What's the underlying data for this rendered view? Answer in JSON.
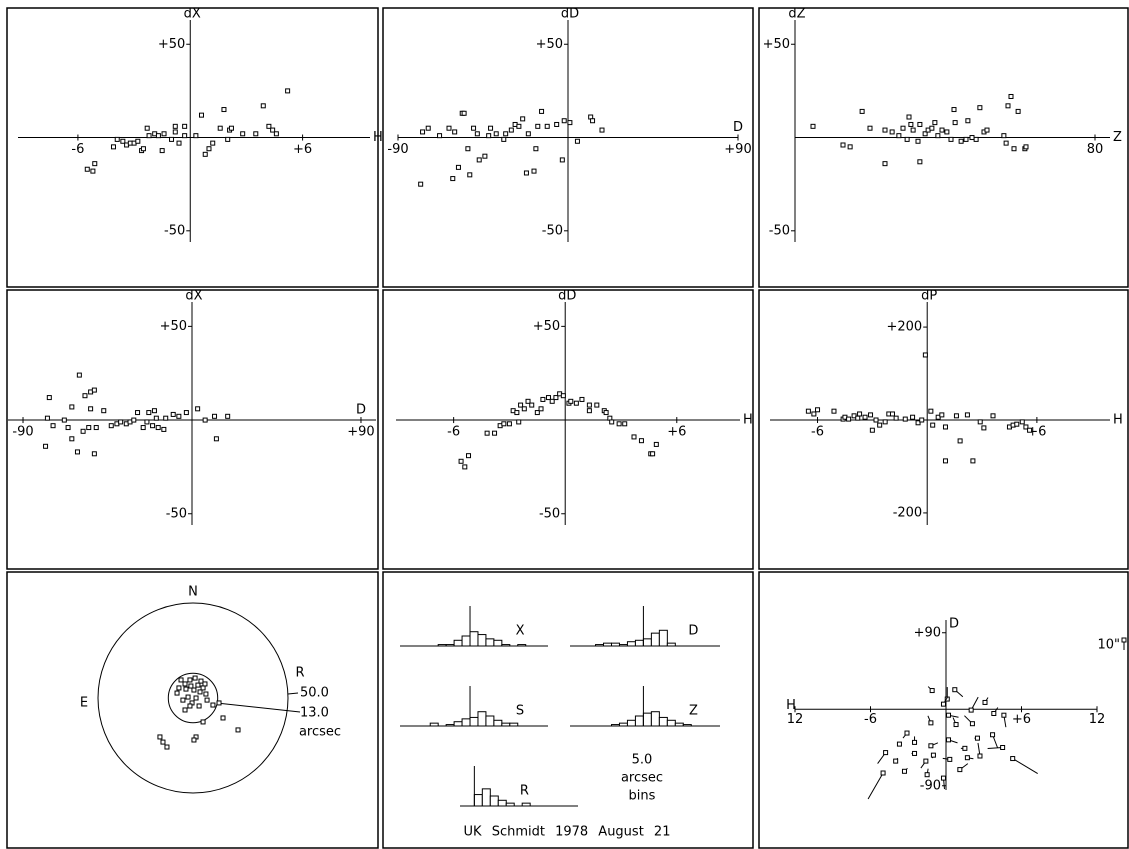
{
  "chart_data": [
    {
      "type": "scatter",
      "ylabel": "dX",
      "xlabel": "H",
      "xlim": [
        -9.2,
        9.6
      ],
      "ylim": [
        -56,
        63
      ],
      "xticks": [
        -6,
        {
          "value": 6,
          "label": "+6"
        }
      ],
      "yticks": [
        {
          "value": 50,
          "label": "+50"
        },
        -50
      ],
      "x": [
        -5.5,
        -5.1,
        -5.2,
        -4.1,
        -3.9,
        -3.6,
        -3.4,
        -3.2,
        -3.0,
        -2.8,
        -2.6,
        -2.5,
        -2.3,
        -2.2,
        -1.9,
        -1.7,
        -1.5,
        -1.4,
        -1.0,
        -0.8,
        -0.8,
        -0.6,
        -0.3,
        -0.3,
        0.3,
        0.6,
        0.8,
        1.0,
        1.2,
        1.6,
        1.8,
        2.0,
        2.1,
        2.2,
        2.8,
        3.5,
        3.9,
        4.2,
        4.4,
        4.6,
        5.2
      ],
      "y": [
        -17,
        -14,
        -18,
        -5,
        -1,
        -2,
        -4,
        -3,
        -3,
        -2,
        -7,
        -6,
        5,
        1,
        2,
        1,
        -7,
        2,
        -1,
        6,
        3,
        -3,
        6,
        1,
        1,
        12,
        -9,
        -6,
        -3,
        5,
        15,
        -1,
        4,
        5,
        2,
        2,
        17,
        6,
        4,
        2,
        25
      ]
    },
    {
      "type": "scatter",
      "ylabel": "dD",
      "xlabel": "D",
      "xlim": [
        -90,
        90
      ],
      "ylim": [
        -56,
        63
      ],
      "xticks": [
        -90,
        {
          "value": 90,
          "label": "+90"
        }
      ],
      "yticks": [
        {
          "value": 50,
          "label": "+50"
        },
        -50
      ],
      "x": [
        -78,
        -77,
        -74,
        -68,
        -63,
        -61,
        -60,
        -58,
        -56,
        -55,
        -53,
        -52,
        -50,
        -48,
        -47,
        -44,
        -42,
        -41,
        -38,
        -34,
        -33,
        -30,
        -28,
        -26,
        -24,
        -22,
        -21,
        -18,
        -17,
        -16,
        -14,
        -11,
        -6,
        -3,
        -2,
        1,
        5,
        12,
        13,
        18
      ],
      "y": [
        -25,
        3,
        5,
        1,
        5,
        -22,
        3,
        -16,
        13,
        13,
        -6,
        -20,
        5,
        2,
        -12,
        -10,
        1,
        5,
        2,
        -1,
        2,
        4,
        7,
        6,
        10,
        -19,
        2,
        -18,
        -6,
        6,
        14,
        6,
        7,
        -12,
        9,
        8,
        -2,
        11,
        9,
        4
      ]
    },
    {
      "type": "scatter",
      "ylabel": "dZ",
      "xlabel": "Z",
      "xlim": [
        0,
        84
      ],
      "ylim": [
        -56,
        63
      ],
      "xticks": [
        80
      ],
      "yticks": [
        {
          "value": 50,
          "label": "+50"
        },
        -50
      ],
      "x": [
        4.8,
        12.8,
        14.7,
        17.9,
        20.0,
        24.0,
        24.0,
        25.9,
        27.7,
        28.8,
        29.9,
        30.4,
        30.9,
        31.5,
        32.8,
        33.3,
        33.3,
        34.7,
        35.5,
        36.5,
        37.3,
        38.1,
        39.2,
        40.5,
        41.6,
        42.4,
        42.7,
        44.3,
        45.6,
        46.1,
        47.2,
        48.3,
        49.3,
        50.4,
        51.2,
        55.7,
        56.3,
        56.8,
        57.6,
        58.4,
        59.5,
        61.3,
        61.6
      ],
      "y": [
        6,
        -4,
        -5,
        14,
        5,
        -14,
        4,
        3,
        1,
        5,
        -1,
        11,
        7,
        4,
        -2,
        -13,
        7,
        2,
        4,
        5,
        8,
        1,
        4,
        3,
        -1,
        15,
        8,
        -2,
        -1,
        9,
        0,
        -1,
        16,
        3,
        4,
        1,
        -3,
        17,
        22,
        -6,
        14,
        -6,
        -5
      ]
    },
    {
      "type": "scatter",
      "ylabel": "dX",
      "xlabel": "D",
      "xlim": [
        -98,
        98
      ],
      "ylim": [
        -56,
        63
      ],
      "xticks": [
        -90,
        {
          "value": 90,
          "label": "+90"
        }
      ],
      "yticks": [
        {
          "value": 50,
          "label": "+50"
        },
        -50
      ],
      "x": [
        -78,
        -77,
        -76,
        -74,
        -68,
        -66,
        -64,
        -64,
        -61,
        -60,
        -58,
        -57,
        -55,
        -54,
        -54,
        -52,
        -52,
        -51,
        -47,
        -43,
        -40,
        -38,
        -35,
        -33,
        -31,
        -29,
        -26,
        -24,
        -23,
        -21,
        -20,
        -19,
        -18,
        -15,
        -14,
        -10,
        -7,
        -3,
        3,
        7,
        12,
        13,
        19
      ],
      "y": [
        -14,
        1,
        12,
        -3,
        0,
        -4,
        7,
        -10,
        -17,
        24,
        -6,
        13,
        -4,
        6,
        15,
        16,
        -18,
        -4,
        5,
        -3,
        -2,
        -1,
        -2,
        -1,
        0,
        4,
        -4,
        -1,
        4,
        -3,
        5,
        1,
        -4,
        -5,
        1,
        3,
        2,
        4,
        6,
        0,
        2,
        -10,
        2
      ]
    },
    {
      "type": "scatter",
      "ylabel": "dD",
      "xlabel": "H",
      "xlim": [
        -9.1,
        9.4
      ],
      "ylim": [
        -56,
        63
      ],
      "xticks": [
        -6,
        {
          "value": 6,
          "label": "+6"
        }
      ],
      "yticks": [
        {
          "value": 50,
          "label": "+50"
        },
        -50
      ],
      "x": [
        -5.6,
        -5.4,
        -5.2,
        -4.2,
        -3.8,
        -3.5,
        -3.3,
        -3.0,
        -2.8,
        -2.6,
        -2.5,
        -2.4,
        -2.2,
        -2.0,
        -1.8,
        -1.5,
        -1.3,
        -1.2,
        -0.9,
        -0.7,
        -0.5,
        -0.3,
        -0.1,
        0.2,
        0.3,
        0.6,
        0.9,
        1.3,
        1.3,
        1.7,
        2.1,
        2.2,
        2.4,
        2.5,
        2.9,
        3.2,
        3.7,
        4.1,
        4.6,
        4.7,
        4.9
      ],
      "y": [
        -22,
        -25,
        -19,
        -7,
        -7,
        -3,
        -2,
        -2,
        5,
        4,
        -1,
        8,
        6,
        10,
        8,
        4,
        6,
        11,
        12,
        10,
        12,
        14,
        13,
        9,
        10,
        9,
        11,
        8,
        5,
        8,
        5,
        4,
        1,
        -1,
        -2,
        -2,
        -9,
        -11,
        -18,
        -18,
        -13
      ]
    },
    {
      "type": "scatter",
      "ylabel": "dP",
      "xlabel": "H",
      "xlim": [
        -8.6,
        10
      ],
      "ylim": [
        -226,
        254
      ],
      "xticks": [
        -6,
        {
          "value": 6,
          "label": "+6"
        }
      ],
      "yticks": [
        {
          "value": 200,
          "label": "+200"
        },
        -200
      ],
      "x": [
        -6.5,
        -6.2,
        -6.0,
        -5.1,
        -4.6,
        -4.5,
        -4.3,
        -4.0,
        -3.8,
        -3.7,
        -3.4,
        -3.1,
        -3.0,
        -2.8,
        -2.6,
        -2.3,
        -2.1,
        -1.9,
        -1.7,
        -1.2,
        -0.8,
        -0.5,
        -0.3,
        -0.1,
        0.2,
        0.3,
        0.6,
        0.8,
        1.0,
        1.0,
        1.6,
        1.8,
        2.2,
        2.5,
        2.9,
        3.1,
        3.6,
        4.5,
        4.7,
        4.9,
        5.2,
        5.4,
        5.6
      ],
      "y": [
        19,
        13,
        22,
        19,
        2,
        6,
        2,
        9,
        4,
        13,
        6,
        11,
        -22,
        0,
        -11,
        -4,
        13,
        13,
        4,
        2,
        6,
        -6,
        0,
        140,
        19,
        -11,
        6,
        11,
        -88,
        -15,
        9,
        -45,
        11,
        -88,
        -4,
        -17,
        9,
        -15,
        -11,
        -9,
        -4,
        -15,
        -22
      ]
    },
    {
      "type": "polar",
      "north": "N",
      "east": "E",
      "radius_label": "R",
      "unit": "arcsec",
      "circles": [
        {
          "value": 50,
          "label": "50.0"
        },
        {
          "value": 13,
          "label": "13.0"
        }
      ],
      "x": [
        -17.4,
        -15.8,
        -13.7,
        -7.4,
        -8.4,
        -6.3,
        -5.3,
        -4.2,
        -3.7,
        -2.6,
        -1.6,
        -1.1,
        -0.5,
        0.5,
        1.1,
        1.6,
        2.6,
        3.2,
        3.7,
        4.2,
        5.3,
        6.3,
        6.8,
        7.4,
        -1.6,
        -4.2,
        5.3,
        10.5,
        13.7,
        15.8,
        23.7,
        1.6,
        0.5
      ],
      "y": [
        -20.5,
        -23.2,
        -25.8,
        5.3,
        2.6,
        9.5,
        -1.1,
        7.4,
        4.7,
        0.5,
        9.5,
        6.3,
        -2.6,
        4.2,
        10.5,
        0,
        6.8,
        -4.2,
        3.2,
        8.9,
        5.3,
        7.4,
        2.1,
        -1.1,
        -4.2,
        -6.3,
        -12.6,
        -3.7,
        -2.6,
        -10.5,
        -16.8,
        -20.5,
        -22.1
      ]
    },
    {
      "type": "histogram",
      "ylim": [
        0,
        28
      ],
      "bin_note": [
        "5.0",
        "arcsec",
        "bins"
      ],
      "footer": "UK Schmidt 1978 August 21",
      "histograms": [
        {
          "name": "X",
          "xlim": [
            -44,
            49
          ],
          "bins": [
            -20,
            -15,
            -10,
            -5,
            0,
            5,
            10,
            15,
            20,
            25,
            30,
            35
          ],
          "counts": [
            1,
            1,
            4,
            7,
            10,
            8,
            5,
            4,
            1,
            0,
            1
          ]
        },
        {
          "name": "D",
          "xlim": [
            -46,
            48
          ],
          "bins": [
            -30,
            -25,
            -20,
            -15,
            -10,
            -5,
            0,
            5,
            10,
            15,
            20
          ],
          "counts": [
            1,
            2,
            2,
            1,
            3,
            4,
            5,
            9,
            11,
            2
          ]
        },
        {
          "name": "S",
          "xlim": [
            -44,
            49
          ],
          "bins": [
            -25,
            -20,
            -15,
            -10,
            -5,
            0,
            5,
            10,
            15,
            20,
            25,
            30
          ],
          "counts": [
            2,
            0,
            1,
            3,
            5,
            6,
            10,
            7,
            4,
            2,
            2
          ]
        },
        {
          "name": "Z",
          "xlim": [
            -46,
            48
          ],
          "bins": [
            -20,
            -15,
            -10,
            -5,
            0,
            5,
            10,
            15,
            20,
            25,
            30
          ],
          "counts": [
            1,
            2,
            4,
            7,
            9,
            10,
            6,
            4,
            2,
            1
          ]
        },
        {
          "name": "R",
          "xlim": [
            -9,
            65
          ],
          "bins": [
            0,
            5,
            10,
            15,
            20,
            25,
            30,
            35
          ],
          "counts": [
            8,
            12,
            7,
            4,
            2,
            0,
            2
          ]
        }
      ]
    },
    {
      "type": "vector",
      "xlabel": "H",
      "ylabel": "D",
      "xlim": [
        -12,
        12
      ],
      "ylim": [
        -95,
        105
      ],
      "xticks": [
        {
          "value": -12,
          "label": "12"
        },
        -6,
        {
          "value": 6,
          "label": "+6"
        },
        12
      ],
      "yticks": [
        {
          "value": 90,
          "label": "+90"
        },
        -90
      ],
      "scale_label": "10\"",
      "scale_value": 10,
      "x": [
        -1.1,
        0.7,
        3.1,
        0.1,
        -0.2,
        0.2,
        2.0,
        3.8,
        4.6,
        -1.2,
        0.8,
        2.1,
        3.7,
        2.5,
        0.2,
        -3.1,
        -2.5,
        -3.7,
        -1.2,
        1.5,
        -4.8,
        -2.5,
        -1.0,
        0.3,
        1.7,
        4.5,
        5.3,
        2.7,
        -4.0,
        -1.6,
        1.1,
        -5.0,
        -3.3,
        -1.5,
        -0.2
      ],
      "y": [
        22,
        23,
        8,
        12,
        6,
        -7,
        -1,
        -5,
        -7,
        -16,
        -18,
        -17,
        -30,
        -34,
        -36,
        -28,
        -39,
        -41,
        -43,
        -46,
        -51,
        -52,
        -54,
        -59,
        -57,
        -45,
        -58,
        -55,
        -61,
        -61,
        -71,
        -75,
        -73,
        -77,
        -81
      ],
      "u": [
        -4,
        8,
        3,
        0,
        4,
        10,
        7,
        4,
        2,
        -3,
        -3,
        -8,
        5,
        -3,
        9,
        -4,
        0,
        -2,
        7,
        -4,
        -8,
        -3,
        -1,
        -7,
        6,
        -15,
        25,
        -2,
        2,
        -5,
        8,
        -15,
        3,
        1,
        1
      ],
      "v": [
        4,
        -7,
        5,
        12,
        7,
        -2,
        13,
        6,
        -12,
        7,
        7,
        8,
        -13,
        0,
        -3,
        -5,
        6,
        1,
        3,
        0,
        -11,
        0,
        -3,
        1,
        -1,
        -1,
        -15,
        13,
        3,
        -7,
        6,
        -26,
        3,
        6,
        -11
      ]
    }
  ]
}
